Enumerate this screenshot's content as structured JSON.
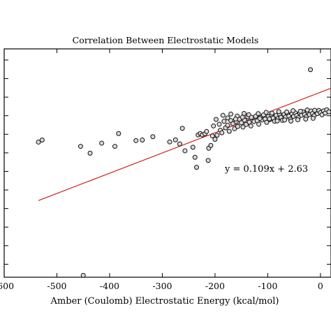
{
  "chart_data": {
    "type": "scatter",
    "title": "Correlation Between Electrostatic Models",
    "xlabel": "Amber (Coulomb) Electrostatic Energy (kcal/mol)",
    "ylabel": "",
    "xlim": [
      -600,
      20
    ],
    "ylim": [
      -97,
      26
    ],
    "x_ticks": [
      -600,
      -500,
      -400,
      -300,
      -200,
      -100,
      0
    ],
    "x_tick_labels": [
      "-600",
      "-500",
      "-400",
      "-300",
      "-200",
      "-100",
      "0"
    ],
    "y_ticks": [
      -90,
      -80,
      -70,
      -60,
      -50,
      -40,
      -30,
      -20,
      -10,
      0,
      10,
      20
    ],
    "grid": false,
    "annotation": "y = 0.109x + 2.63",
    "fit": {
      "slope": 0.109,
      "intercept": 2.63,
      "x_range": [
        -535,
        20
      ]
    },
    "colors": {
      "fit_line": "#d11f1f",
      "marker_fill": "#d8d8d8",
      "marker_edge": "#111111",
      "axis": "#000000"
    },
    "series": [
      {
        "points": [
          [
            -535,
            -24.2
          ],
          [
            -528,
            -23.1
          ],
          [
            -455,
            -26.5
          ],
          [
            -437,
            -30.2
          ],
          [
            -415,
            -24.8
          ],
          [
            -390,
            -26.5
          ],
          [
            -383,
            -19.6
          ],
          [
            -350,
            -23.4
          ],
          [
            -338,
            -23.1
          ],
          [
            -318,
            -21.3
          ],
          [
            -286,
            -24.1
          ],
          [
            -275,
            -23.0
          ],
          [
            -267,
            -25.2
          ],
          [
            -262,
            -16.8
          ],
          [
            -257,
            -28.9
          ],
          [
            -242,
            -27.0
          ],
          [
            -238,
            -32.4
          ],
          [
            -235,
            -37.8
          ],
          [
            -232,
            -20.3
          ],
          [
            -228,
            -19.6
          ],
          [
            -224,
            -20.3
          ],
          [
            -219,
            -19.7
          ],
          [
            -216,
            -18.5
          ],
          [
            -213,
            -34.1
          ],
          [
            -212,
            -27.5
          ],
          [
            -208,
            -26.0
          ],
          [
            -205,
            -20.9
          ],
          [
            -203,
            -15.5
          ],
          [
            -200,
            -22.7
          ],
          [
            -196,
            -20.5
          ],
          [
            -192,
            -14.6
          ],
          [
            -190,
            -17.8
          ],
          [
            -187,
            -19.2
          ],
          [
            -183,
            -13.0
          ],
          [
            -180,
            -16.5
          ],
          [
            -176,
            -15.1
          ],
          [
            -173,
            -18.4
          ],
          [
            -170,
            -12.6
          ],
          [
            -166,
            -14.3
          ],
          [
            -163,
            -17.0
          ],
          [
            -160,
            -13.1
          ],
          [
            -157,
            -15.8
          ],
          [
            -154,
            -11.9
          ],
          [
            -150,
            -13.8
          ],
          [
            -147,
            -16.1
          ],
          [
            -144,
            -12.4
          ],
          [
            -141,
            -14.7
          ],
          [
            -138,
            -10.6
          ],
          [
            -135,
            -13.5
          ],
          [
            -132,
            -15.5
          ],
          [
            -129,
            -11.2
          ],
          [
            -126,
            -13.1
          ],
          [
            -123,
            -10.3
          ],
          [
            -120,
            -12.7
          ],
          [
            -117,
            -14.6
          ],
          [
            -114,
            -10.9
          ],
          [
            -111,
            -12.3
          ],
          [
            -108,
            -9.6
          ],
          [
            -105,
            -11.8
          ],
          [
            -102,
            -13.6
          ],
          [
            -99,
            -10.4
          ],
          [
            -96,
            -12.1
          ],
          [
            -93,
            -9.5
          ],
          [
            -90,
            -11.3
          ],
          [
            -87,
            -13.0
          ],
          [
            -84,
            -9.8
          ],
          [
            -81,
            -11.6
          ],
          [
            -78,
            -9.0
          ],
          [
            -75,
            -10.9
          ],
          [
            -72,
            -12.5
          ],
          [
            -69,
            -9.3
          ],
          [
            -66,
            -10.7
          ],
          [
            -63,
            -8.8
          ],
          [
            -60,
            -10.2
          ],
          [
            -57,
            -11.9
          ],
          [
            -54,
            -8.9
          ],
          [
            -51,
            -10.4
          ],
          [
            -48,
            -8.4
          ],
          [
            -45,
            -9.9
          ],
          [
            -42,
            -11.1
          ],
          [
            -39,
            -8.6
          ],
          [
            -36,
            -9.8
          ],
          [
            -33,
            -7.9
          ],
          [
            -30,
            -9.3
          ],
          [
            -27,
            -10.6
          ],
          [
            -24,
            -8.1
          ],
          [
            -21,
            -9.4
          ],
          [
            -18,
            -7.5
          ],
          [
            -15,
            -8.8
          ],
          [
            -12,
            -10.0
          ],
          [
            -9,
            -7.7
          ],
          [
            -6,
            -8.9
          ],
          [
            -3,
            -7.2
          ],
          [
            0,
            -8.3
          ],
          [
            3,
            -9.5
          ],
          [
            6,
            -7.4
          ],
          [
            9,
            -8.6
          ],
          [
            12,
            -6.8
          ],
          [
            16,
            -7.9
          ],
          [
            -19,
            14.8
          ],
          [
            -185,
            -9.8
          ],
          [
            -170,
            -9.1
          ],
          [
            -158,
            -10.2
          ],
          [
            -145,
            -8.8
          ],
          [
            -136,
            -9.5
          ],
          [
            -118,
            -8.9
          ],
          [
            -103,
            -8.2
          ],
          [
            -92,
            -8.6
          ],
          [
            -79,
            -7.8
          ],
          [
            -64,
            -8.0
          ],
          [
            -52,
            -7.3
          ],
          [
            -38,
            -7.6
          ],
          [
            -25,
            -6.9
          ],
          [
            -11,
            -7.1
          ],
          [
            -198,
            -12.0
          ],
          [
            -176,
            -11.2
          ],
          [
            -161,
            -11.8
          ],
          [
            -148,
            -10.8
          ],
          [
            -131,
            -10.9
          ],
          [
            -115,
            -11.5
          ],
          [
            -97,
            -11.7
          ],
          [
            -82,
            -12.8
          ],
          [
            -68,
            -12.3
          ],
          [
            -56,
            -12.9
          ],
          [
            -43,
            -12.2
          ],
          [
            -28,
            -11.8
          ],
          [
            -14,
            -11.4
          ],
          [
            -450,
            -96.0
          ]
        ]
      }
    ]
  }
}
